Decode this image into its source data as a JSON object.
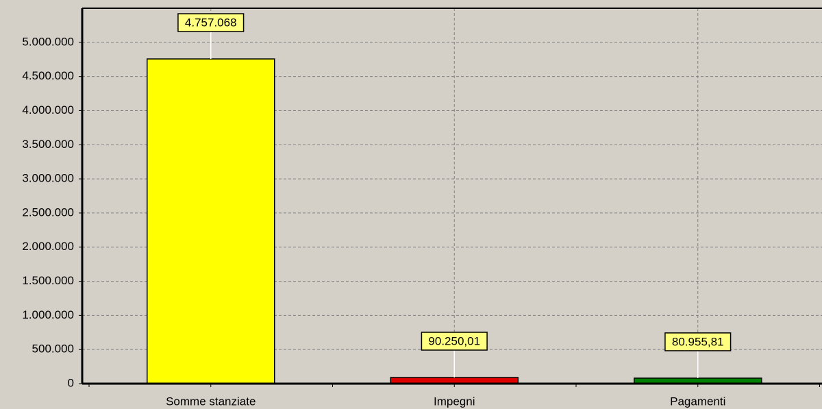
{
  "chart_data": {
    "type": "bar",
    "categories": [
      "Somme stanziate",
      "Impegni",
      "Pagamenti"
    ],
    "values": [
      4757068,
      90250.01,
      80955.81
    ],
    "value_labels": [
      "4.757.068",
      "90.250,01",
      "80.955,81"
    ],
    "colors": [
      "#ffff00",
      "#e00000",
      "#008000"
    ],
    "ylim": [
      0,
      5500000
    ],
    "yticks": [
      0,
      {
        "value": 500000,
        "label": "500.000"
      },
      {
        "value": 1000000,
        "label": "1.000.000"
      },
      {
        "value": 1500000,
        "label": "1.500.000"
      },
      {
        "value": 2000000,
        "label": "2.000.000"
      },
      {
        "value": 2500000,
        "label": "2.500.000"
      },
      {
        "value": 3000000,
        "label": "3.000.000"
      },
      {
        "value": 3500000,
        "label": "3.500.000"
      },
      {
        "value": 4000000,
        "label": "4.000.000"
      },
      {
        "value": 4500000,
        "label": "4.500.000"
      },
      {
        "value": 5000000,
        "label": "5.000.000"
      }
    ],
    "grid": true
  }
}
